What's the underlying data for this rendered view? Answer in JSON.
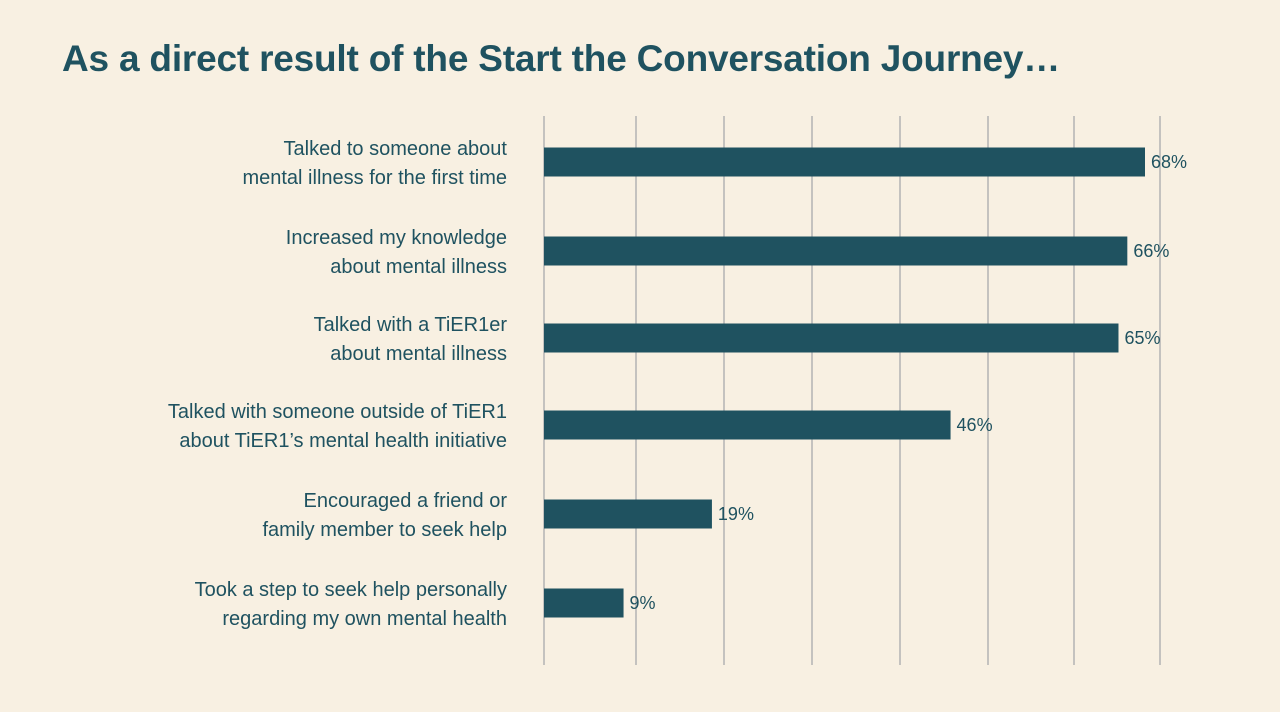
{
  "title": "As a direct result of the Start the Conversation Journey…",
  "colors": {
    "background": "#f8f0e2",
    "bar": "#1f5260",
    "text": "#1f5260",
    "grid": "#b3b3b3"
  },
  "chart_data": {
    "type": "bar",
    "orientation": "horizontal",
    "title": "As a direct result of the Start the Conversation Journey…",
    "categories": [
      [
        "Talked to someone about",
        "mental illness for the first time"
      ],
      [
        "Increased my knowledge",
        "about mental illness"
      ],
      [
        "Talked with a TiER1er",
        "about mental illness"
      ],
      [
        "Talked with someone outside of TiER1",
        "about TiER1’s mental health initiative"
      ],
      [
        "Encouraged a friend or",
        "family member to seek help"
      ],
      [
        "Took a step to seek help personally",
        "regarding my own mental health"
      ]
    ],
    "values": [
      68,
      66,
      65,
      46,
      19,
      9
    ],
    "value_labels": [
      "68%",
      "66%",
      "65%",
      "46%",
      "19%",
      "9%"
    ],
    "unit": "%",
    "xlim": [
      0,
      70
    ],
    "grid": true,
    "xlabel": "",
    "ylabel": ""
  }
}
